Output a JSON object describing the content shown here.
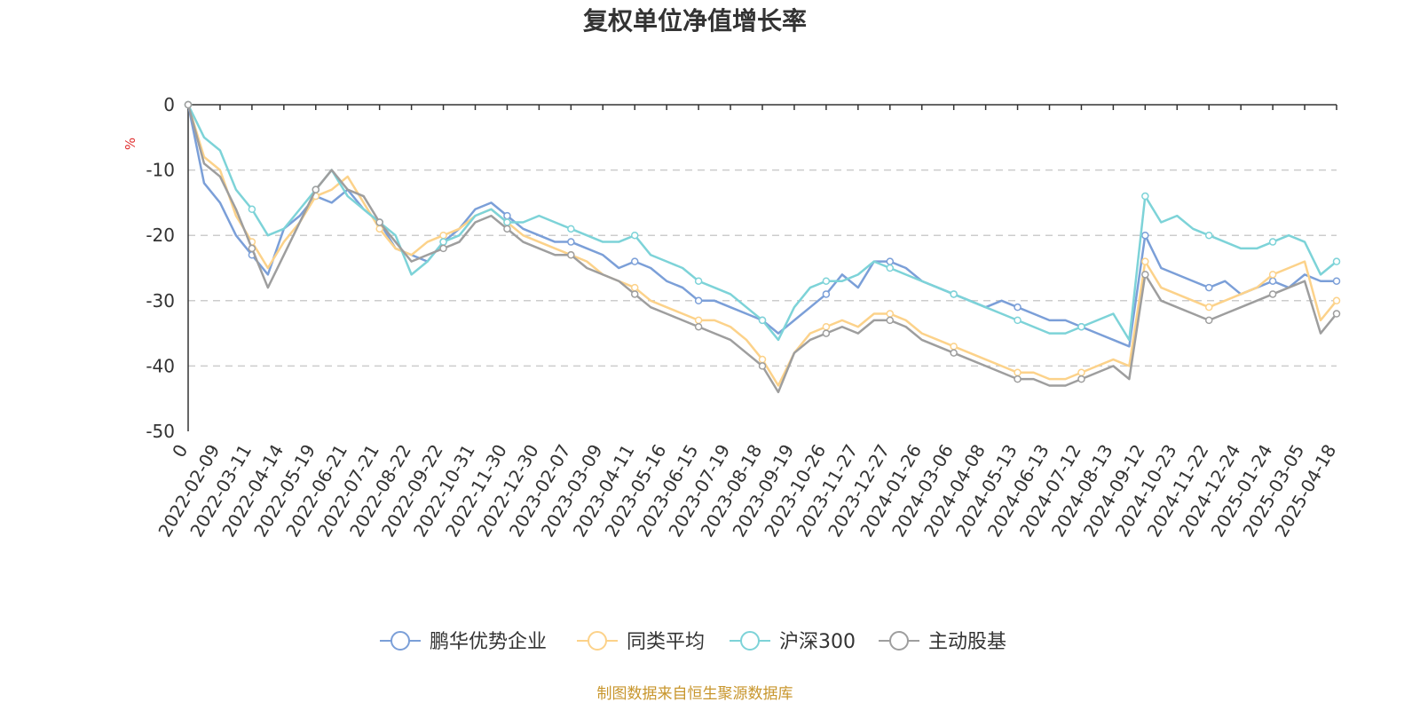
{
  "chart_data": {
    "type": "line",
    "title": "复权单位净值增长率",
    "ylabel": "%",
    "ylim": [
      -50,
      0
    ],
    "yticks": [
      0,
      -10,
      -20,
      -30,
      -40,
      -50
    ],
    "grid": true,
    "legend_position": "bottom",
    "source": "制图数据来自恒生聚源数据库",
    "x_labels": [
      "0",
      "2022-02-09",
      "2022-03-11",
      "2022-04-14",
      "2022-05-19",
      "2022-06-21",
      "2022-07-21",
      "2022-08-22",
      "2022-09-22",
      "2022-10-31",
      "2022-11-30",
      "2022-12-30",
      "2023-02-07",
      "2023-03-09",
      "2023-04-11",
      "2023-05-16",
      "2023-06-15",
      "2023-07-19",
      "2023-08-18",
      "2023-09-19",
      "2023-10-26",
      "2023-11-27",
      "2023-12-27",
      "2024-01-26",
      "2024-03-06",
      "2024-04-08",
      "2024-05-13",
      "2024-06-13",
      "2024-07-12",
      "2024-08-13",
      "2024-09-12",
      "2024-10-23",
      "2024-11-22",
      "2024-12-24",
      "2025-01-24",
      "2025-03-05",
      "2025-04-18"
    ],
    "x": [
      0,
      0.5,
      1,
      1.5,
      2,
      2.5,
      3,
      3.5,
      4,
      4.5,
      5,
      5.5,
      6,
      6.5,
      7,
      7.5,
      8,
      8.5,
      9,
      9.5,
      10,
      10.5,
      11,
      11.5,
      12,
      12.5,
      13,
      13.5,
      14,
      14.5,
      15,
      15.5,
      16,
      16.5,
      17,
      17.5,
      18,
      18.5,
      19,
      19.5,
      20,
      20.5,
      21,
      21.5,
      22,
      22.5,
      23,
      23.5,
      24,
      24.5,
      25,
      25.5,
      26,
      26.5,
      27,
      27.5,
      28,
      28.5,
      29,
      29.5,
      30,
      30.5,
      31,
      31.5,
      32,
      32.5,
      33,
      33.5,
      34,
      34.5,
      35,
      35.5,
      36
    ],
    "series": [
      {
        "name": "鹏华优势企业",
        "color": "#7b9fd8",
        "values": [
          0,
          -12,
          -15,
          -20,
          -23,
          -26,
          -19,
          -17,
          -14,
          -15,
          -13,
          -16,
          -18,
          -22,
          -23,
          -24,
          -21,
          -19,
          -16,
          -15,
          -17,
          -19,
          -20,
          -21,
          -21,
          -22,
          -23,
          -25,
          -24,
          -25,
          -27,
          -28,
          -30,
          -30,
          -31,
          -32,
          -33,
          -35,
          -33,
          -31,
          -29,
          -26,
          -28,
          -24,
          -24,
          -25,
          -27,
          -28,
          -29,
          -30,
          -31,
          -30,
          -31,
          -32,
          -33,
          -33,
          -34,
          -35,
          -36,
          -37,
          -20,
          -25,
          -26,
          -27,
          -28,
          -27,
          -29,
          -28,
          -27,
          -28,
          -26,
          -27,
          -27
        ]
      },
      {
        "name": "同类平均",
        "color": "#fcd28a",
        "values": [
          0,
          -8,
          -10,
          -17,
          -21,
          -25,
          -21,
          -18,
          -14,
          -13,
          -11,
          -15,
          -19,
          -22,
          -23,
          -21,
          -20,
          -19,
          -17,
          -16,
          -18,
          -20,
          -21,
          -22,
          -23,
          -24,
          -26,
          -27,
          -28,
          -30,
          -31,
          -32,
          -33,
          -33,
          -34,
          -36,
          -39,
          -43,
          -38,
          -35,
          -34,
          -33,
          -34,
          -32,
          -32,
          -33,
          -35,
          -36,
          -37,
          -38,
          -39,
          -40,
          -41,
          -41,
          -42,
          -42,
          -41,
          -40,
          -39,
          -40,
          -24,
          -28,
          -29,
          -30,
          -31,
          -30,
          -29,
          -28,
          -26,
          -25,
          -24,
          -33,
          -30
        ]
      },
      {
        "name": "沪深300",
        "color": "#7dd3d8",
        "values": [
          0,
          -5,
          -7,
          -13,
          -16,
          -20,
          -19,
          -16,
          -13,
          -10,
          -14,
          -16,
          -18,
          -20,
          -26,
          -24,
          -21,
          -20,
          -17,
          -16,
          -18,
          -18,
          -17,
          -18,
          -19,
          -20,
          -21,
          -21,
          -20,
          -23,
          -24,
          -25,
          -27,
          -28,
          -29,
          -31,
          -33,
          -36,
          -31,
          -28,
          -27,
          -27,
          -26,
          -24,
          -25,
          -26,
          -27,
          -28,
          -29,
          -30,
          -31,
          -32,
          -33,
          -34,
          -35,
          -35,
          -34,
          -33,
          -32,
          -36,
          -14,
          -18,
          -17,
          -19,
          -20,
          -21,
          -22,
          -22,
          -21,
          -20,
          -21,
          -26,
          -24
        ]
      },
      {
        "name": "主动股基",
        "color": "#9e9e9e",
        "values": [
          0,
          -9,
          -11,
          -16,
          -22,
          -28,
          -23,
          -18,
          -13,
          -10,
          -13,
          -14,
          -18,
          -21,
          -24,
          -23,
          -22,
          -21,
          -18,
          -17,
          -19,
          -21,
          -22,
          -23,
          -23,
          -25,
          -26,
          -27,
          -29,
          -31,
          -32,
          -33,
          -34,
          -35,
          -36,
          -38,
          -40,
          -44,
          -38,
          -36,
          -35,
          -34,
          -35,
          -33,
          -33,
          -34,
          -36,
          -37,
          -38,
          -39,
          -40,
          -41,
          -42,
          -42,
          -43,
          -43,
          -42,
          -41,
          -40,
          -42,
          -26,
          -30,
          -31,
          -32,
          -33,
          -32,
          -31,
          -30,
          -29,
          -28,
          -27,
          -35,
          -32
        ]
      }
    ]
  }
}
